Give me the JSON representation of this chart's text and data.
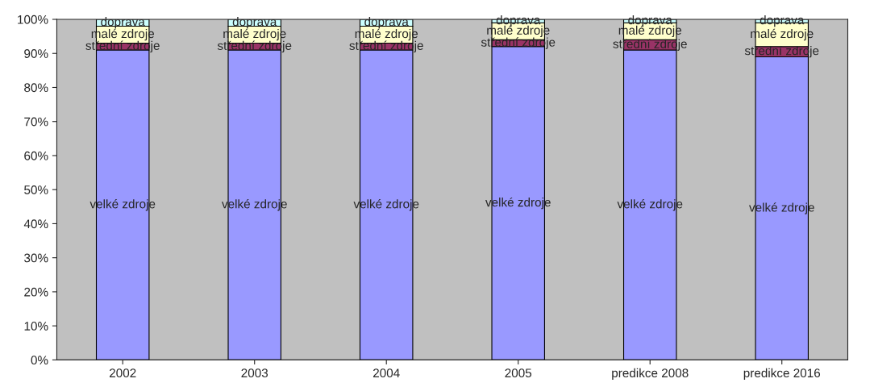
{
  "chart_data": {
    "type": "bar",
    "stacked": true,
    "categories": [
      "2002",
      "2003",
      "2004",
      "2005",
      "predikce 2008",
      "predikce 2016"
    ],
    "series": [
      {
        "name": "velké zdroje",
        "color": "#9999ff",
        "values": [
          91,
          91,
          91,
          92,
          91,
          89
        ]
      },
      {
        "name": "střední zdroje",
        "color": "#993366",
        "values": [
          2,
          2,
          2,
          2,
          3,
          3
        ]
      },
      {
        "name": "malé zdroje",
        "color": "#ffffcc",
        "values": [
          5,
          5,
          5,
          5,
          5,
          7
        ]
      },
      {
        "name": "doprava",
        "color": "#ccffff",
        "values": [
          2,
          2,
          2,
          1,
          1,
          1
        ]
      }
    ],
    "ylim": [
      0,
      100
    ],
    "yticks": [
      {
        "value": 0,
        "label": "0%"
      },
      {
        "value": 10,
        "label": "10%"
      },
      {
        "value": 20,
        "label": "20%"
      },
      {
        "value": 30,
        "label": "30%"
      },
      {
        "value": 40,
        "label": "40%"
      },
      {
        "value": 50,
        "label": "50%"
      },
      {
        "value": 60,
        "label": "60%"
      },
      {
        "value": 70,
        "label": "70%"
      },
      {
        "value": 80,
        "label": "80%"
      },
      {
        "value": 90,
        "label": "90%"
      },
      {
        "value": 100,
        "label": "100%"
      }
    ],
    "grid": false,
    "legend": false
  }
}
